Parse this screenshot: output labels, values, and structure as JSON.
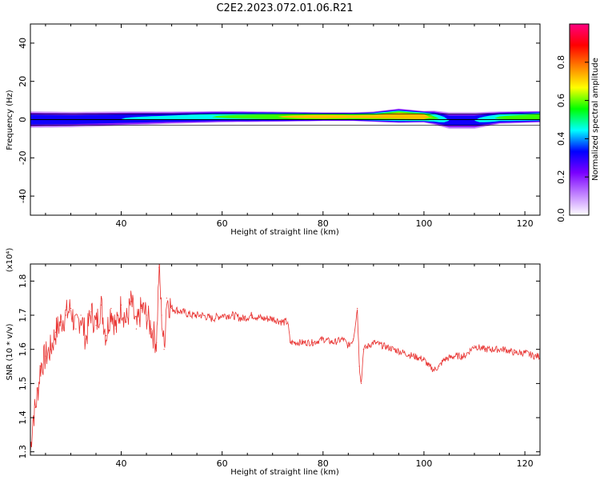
{
  "figure": {
    "title": "C2E2.2023.072.01.06.R21"
  },
  "chart_data": [
    {
      "type": "heatmap",
      "xlabel": "Height of straight line (km)",
      "ylabel": "Frequency (Hz)",
      "xlim": [
        22,
        123
      ],
      "ylim": [
        -50,
        50
      ],
      "x_ticks": [
        40,
        60,
        80,
        100,
        120
      ],
      "y_ticks": [
        -40,
        -20,
        0,
        20,
        40
      ],
      "grid": false,
      "colorbar": {
        "label": "Normalized spectral amplitude",
        "range": [
          0,
          1
        ],
        "ticks": [
          "0.0",
          "0.2",
          "0.4",
          "0.6",
          "0.8"
        ],
        "colormap": [
          "#ffffff",
          "#c080ff",
          "#7a00ff",
          "#0000ff",
          "#00ffff",
          "#00ff00",
          "#ffff00",
          "#ff8000",
          "#ff0000",
          "#ff0080"
        ]
      },
      "band": {
        "x": [
          22,
          30,
          40,
          50,
          60,
          70,
          80,
          86,
          90,
          95,
          100,
          102,
          105,
          110,
          115,
          123
        ],
        "center_hz": [
          0,
          0,
          0.5,
          1,
          1.5,
          1.5,
          1.5,
          1.5,
          1.5,
          2,
          1.5,
          1,
          -0.5,
          -0.5,
          1,
          1.5
        ],
        "halfwidth_hz": [
          3,
          2.8,
          2.6,
          2.2,
          2,
          1.8,
          1.5,
          1.5,
          1.8,
          2.5,
          2,
          2.5,
          3,
          3,
          2.2,
          2
        ],
        "peak_amplitude": [
          0.45,
          0.45,
          0.45,
          0.5,
          0.6,
          0.7,
          0.85,
          0.8,
          0.8,
          0.85,
          0.85,
          0.6,
          0.45,
          0.45,
          0.6,
          0.7
        ]
      }
    },
    {
      "type": "line",
      "xlabel": "Height of straight line (km)",
      "ylabel": "SNR (10 * v/v)",
      "y_multiplier": "(x10⁴)",
      "xlim": [
        22,
        123
      ],
      "ylim": [
        1.29,
        1.85
      ],
      "x_ticks": [
        40,
        60,
        80,
        100,
        120
      ],
      "y_ticks": [
        1.3,
        1.4,
        1.5,
        1.6,
        1.7,
        1.8
      ],
      "grid": false,
      "series": [
        {
          "color": "#e8302e",
          "x": [
            22.0,
            22.5,
            23.0,
            23.5,
            24.0,
            25.0,
            26.0,
            27.0,
            28.0,
            29.0,
            30.0,
            31.0,
            32.0,
            33.0,
            34.0,
            35.0,
            36.0,
            37.0,
            38.0,
            39.0,
            40.0,
            41.0,
            42.0,
            43.0,
            44.0,
            45.0,
            46.0,
            47.0,
            47.5,
            48.0,
            48.5,
            49.0,
            50.0,
            52.0,
            54.0,
            56.0,
            58.0,
            60.0,
            62.0,
            64.0,
            66.0,
            68.0,
            70.0,
            72.0,
            73.0,
            73.5,
            75.0,
            78.0,
            80.0,
            82.0,
            84.0,
            85.0,
            86.0,
            86.8,
            87.2,
            87.6,
            88.0,
            90.0,
            92.0,
            94.0,
            96.0,
            98.0,
            100.0,
            101.0,
            102.0,
            103.0,
            104.0,
            106.0,
            108.0,
            110.0,
            112.0,
            114.0,
            116.0,
            118.0,
            120.0,
            122.0,
            123.0
          ],
          "y": [
            1.3,
            1.4,
            1.43,
            1.48,
            1.55,
            1.58,
            1.6,
            1.65,
            1.68,
            1.7,
            1.72,
            1.66,
            1.7,
            1.63,
            1.71,
            1.67,
            1.73,
            1.64,
            1.72,
            1.66,
            1.73,
            1.68,
            1.74,
            1.66,
            1.72,
            1.7,
            1.66,
            1.62,
            1.84,
            1.7,
            1.6,
            1.75,
            1.72,
            1.71,
            1.7,
            1.7,
            1.69,
            1.7,
            1.7,
            1.69,
            1.7,
            1.69,
            1.69,
            1.68,
            1.68,
            1.62,
            1.62,
            1.62,
            1.63,
            1.62,
            1.63,
            1.61,
            1.63,
            1.72,
            1.55,
            1.5,
            1.6,
            1.62,
            1.61,
            1.6,
            1.59,
            1.58,
            1.57,
            1.55,
            1.54,
            1.55,
            1.57,
            1.58,
            1.58,
            1.61,
            1.6,
            1.6,
            1.6,
            1.59,
            1.59,
            1.58,
            1.58
          ]
        }
      ]
    }
  ]
}
